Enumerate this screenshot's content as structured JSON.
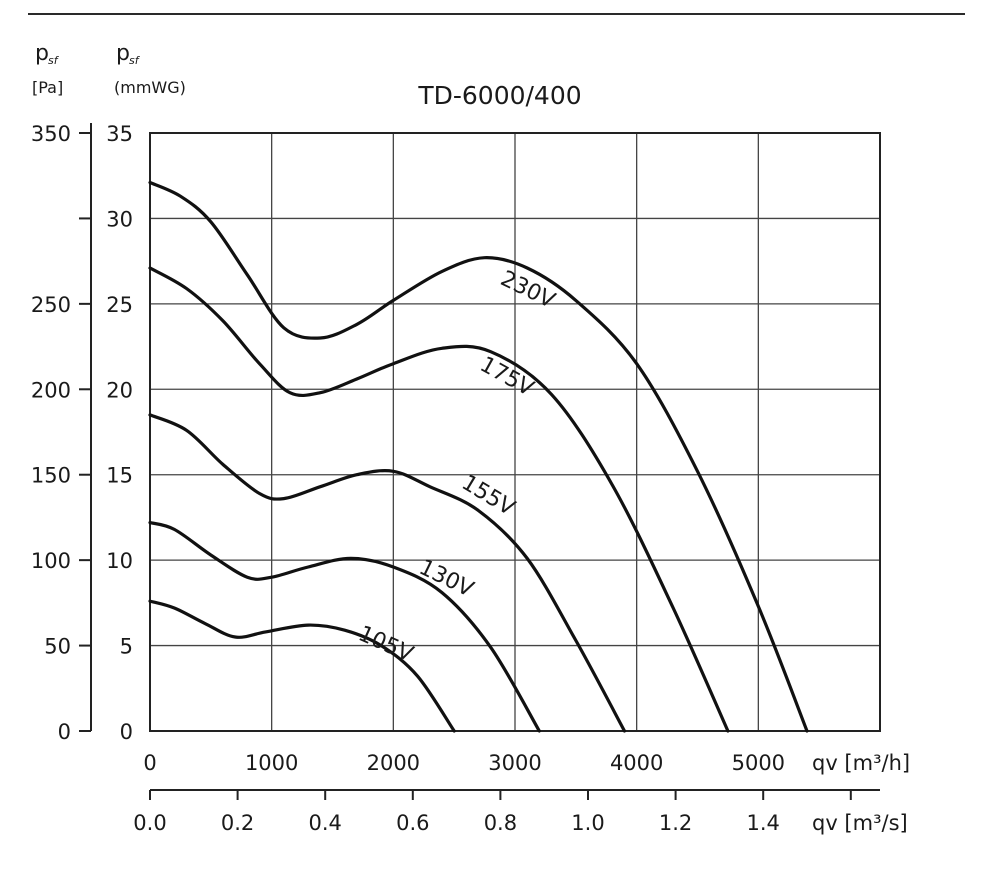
{
  "chart_data": {
    "type": "line",
    "title": "TD-6000/400",
    "left_axis_pa": {
      "label_main": "p",
      "label_sub": "sf",
      "unit": "[Pa]",
      "range": [
        0,
        350
      ],
      "ticks": [
        "0",
        "50",
        "100",
        "150",
        "200",
        "250",
        "350"
      ],
      "tick_values": [
        0,
        50,
        100,
        150,
        200,
        250,
        350
      ]
    },
    "right_axis_mmwg": {
      "label_main": "p",
      "label_sub": "sf",
      "unit": "(mmWG)",
      "range": [
        0,
        35
      ],
      "ticks": [
        "0",
        "5",
        "10",
        "15",
        "20",
        "25",
        "30",
        "35"
      ]
    },
    "x_axis_m3h": {
      "label": "qv [m³/h]",
      "range": [
        0,
        6000
      ],
      "ticks": [
        "0",
        "1000",
        "2000",
        "3000",
        "4000",
        "5000"
      ]
    },
    "x_axis_m3s": {
      "label": "qv [m³/s]",
      "range": [
        0,
        1.6667
      ],
      "ticks": [
        "0.0",
        "0.2",
        "0.4",
        "0.6",
        "0.8",
        "1.0",
        "1.2",
        "1.4"
      ],
      "tick_values": [
        0,
        0.2,
        0.4,
        0.6,
        0.8,
        1.0,
        1.2,
        1.4
      ]
    },
    "grid": true,
    "series": [
      {
        "name": "230V",
        "x": [
          0,
          250,
          500,
          800,
          1100,
          1400,
          1700,
          2000,
          2400,
          2750,
          3100,
          3500,
          4000,
          4500,
          5000,
          5400
        ],
        "y": [
          32.1,
          31.3,
          29.8,
          26.7,
          23.6,
          23.0,
          23.8,
          25.2,
          26.9,
          27.7,
          27.1,
          25.2,
          21.5,
          15.2,
          7.3,
          0
        ]
      },
      {
        "name": "175V",
        "x": [
          0,
          300,
          600,
          900,
          1150,
          1400,
          1700,
          2000,
          2400,
          2800,
          3300,
          3800,
          4300,
          4750
        ],
        "y": [
          27.1,
          25.9,
          24.0,
          21.5,
          19.8,
          19.8,
          20.6,
          21.5,
          22.4,
          22.2,
          19.7,
          14.4,
          7.2,
          0
        ]
      },
      {
        "name": "155V",
        "x": [
          0,
          300,
          600,
          900,
          1100,
          1400,
          1700,
          2000,
          2300,
          2700,
          3100,
          3500,
          3900
        ],
        "y": [
          18.5,
          17.6,
          15.6,
          13.9,
          13.6,
          14.3,
          15.0,
          15.2,
          14.3,
          12.9,
          10.1,
          5.3,
          0
        ]
      },
      {
        "name": "130V",
        "x": [
          0,
          200,
          500,
          800,
          1000,
          1300,
          1650,
          2000,
          2400,
          2800,
          3200
        ],
        "y": [
          12.2,
          11.8,
          10.3,
          9.0,
          9.0,
          9.6,
          10.1,
          9.6,
          8.1,
          4.9,
          0
        ]
      },
      {
        "name": "105V",
        "x": [
          0,
          200,
          450,
          700,
          950,
          1300,
          1600,
          1900,
          2200,
          2500
        ],
        "y": [
          7.6,
          7.2,
          6.3,
          5.5,
          5.8,
          6.2,
          5.9,
          5.0,
          3.2,
          0
        ]
      }
    ]
  }
}
